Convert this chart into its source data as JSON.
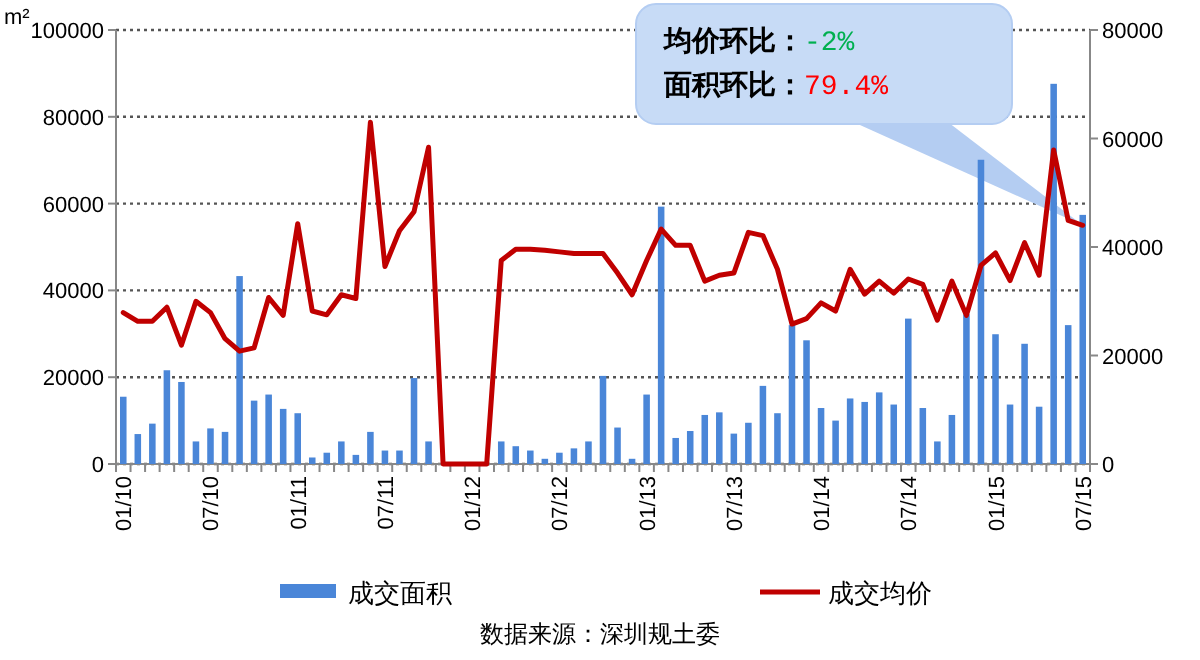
{
  "chart_data": {
    "type": "bar",
    "ylabel": "m²",
    "categories": [
      "01/10",
      null,
      null,
      null,
      null,
      null,
      "07/10",
      null,
      null,
      null,
      null,
      null,
      "01/11",
      null,
      null,
      null,
      null,
      null,
      "07/11",
      null,
      null,
      null,
      null,
      null,
      "01/12",
      null,
      null,
      null,
      null,
      null,
      "07/12",
      null,
      null,
      null,
      null,
      null,
      "01/13",
      null,
      null,
      null,
      null,
      null,
      "07/13",
      null,
      null,
      null,
      null,
      null,
      "01/14",
      null,
      null,
      null,
      null,
      null,
      "07/14",
      null,
      null,
      null,
      null,
      null,
      "01/15",
      null,
      null,
      null,
      null,
      null,
      "07/15"
    ],
    "series": [
      {
        "name": "成交面积",
        "color": "#4a86d8",
        "values": [
          15500,
          6900,
          9300,
          21600,
          18900,
          5200,
          8200,
          7400,
          43300,
          14600,
          16000,
          12700,
          11700,
          1500,
          2600,
          5200,
          2100,
          7400,
          3100,
          3100,
          19800,
          5200,
          0,
          0,
          0,
          0,
          5200,
          4100,
          3100,
          1200,
          2600,
          3600,
          5200,
          20300,
          8400,
          1200,
          16000,
          59300,
          6000,
          7600,
          11300,
          11900,
          7000,
          9500,
          18000,
          11700,
          32000,
          28500,
          12900,
          10000,
          15100,
          14300,
          16500,
          13700,
          33500,
          12900,
          5200,
          11300,
          34500,
          70100,
          29900,
          13700,
          27700,
          13200,
          87600,
          32000,
          57400
        ]
      },
      {
        "name": "成交均价",
        "type": "line",
        "axis": "y2",
        "color": "#c00000",
        "values": [
          27900,
          26300,
          26300,
          28900,
          21900,
          30000,
          27900,
          23100,
          20800,
          21400,
          30700,
          27400,
          44300,
          28200,
          27500,
          31200,
          30500,
          63000,
          36400,
          43000,
          46500,
          58400,
          0,
          0,
          0,
          0,
          37500,
          39600,
          39600,
          39400,
          39100,
          38800,
          38800,
          38800,
          35200,
          31200,
          37500,
          43300,
          40300,
          40300,
          33700,
          34800,
          35200,
          42700,
          42100,
          35900,
          25800,
          26800,
          29700,
          28200,
          35900,
          31300,
          33700,
          31500,
          34100,
          33100,
          26500,
          33700,
          27400,
          36600,
          38900,
          33800,
          40800,
          34800,
          57900,
          44900,
          44000
        ]
      }
    ],
    "ylim": [
      0,
      100000
    ],
    "yticks": [
      0,
      20000,
      40000,
      60000,
      80000,
      100000
    ],
    "y2lim": [
      0,
      80000
    ],
    "y2ticks": [
      0,
      20000,
      40000,
      60000,
      80000
    ],
    "grid": "y",
    "legend": "bottom",
    "annotations": [
      "均价环比：-2%",
      "面积环比：79.4%",
      "数据来源：深圳规土委"
    ]
  }
}
